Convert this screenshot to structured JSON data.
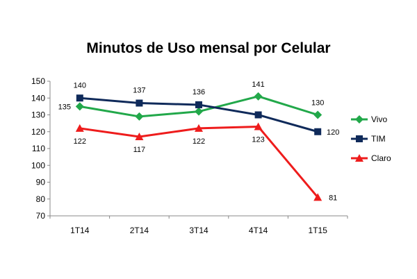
{
  "chart_data": {
    "type": "line",
    "title": "Minutos de Uso mensal por Celular",
    "xlabel": "",
    "ylabel": "",
    "categories": [
      "1T14",
      "2T14",
      "3T14",
      "4T14",
      "1T15"
    ],
    "ylim": [
      70,
      150
    ],
    "yticks": [
      70,
      80,
      90,
      100,
      110,
      120,
      130,
      140,
      150
    ],
    "grid": false,
    "legend_position": "right",
    "series": [
      {
        "name": "Vivo",
        "color": "#22a84a",
        "marker": "diamond",
        "values": [
          135,
          129,
          132,
          141,
          130
        ],
        "labels": [
          "135",
          "",
          "",
          "141",
          "130"
        ]
      },
      {
        "name": "TIM",
        "color": "#0f2a5a",
        "marker": "square",
        "values": [
          140,
          137,
          136,
          130,
          120
        ],
        "labels": [
          "140",
          "137",
          "136",
          "",
          "120"
        ]
      },
      {
        "name": "Claro",
        "color": "#ee1c1c",
        "marker": "triangle",
        "values": [
          122,
          117,
          122,
          123,
          81
        ],
        "labels": [
          "122",
          "117",
          "122",
          "123",
          "81"
        ]
      }
    ]
  }
}
